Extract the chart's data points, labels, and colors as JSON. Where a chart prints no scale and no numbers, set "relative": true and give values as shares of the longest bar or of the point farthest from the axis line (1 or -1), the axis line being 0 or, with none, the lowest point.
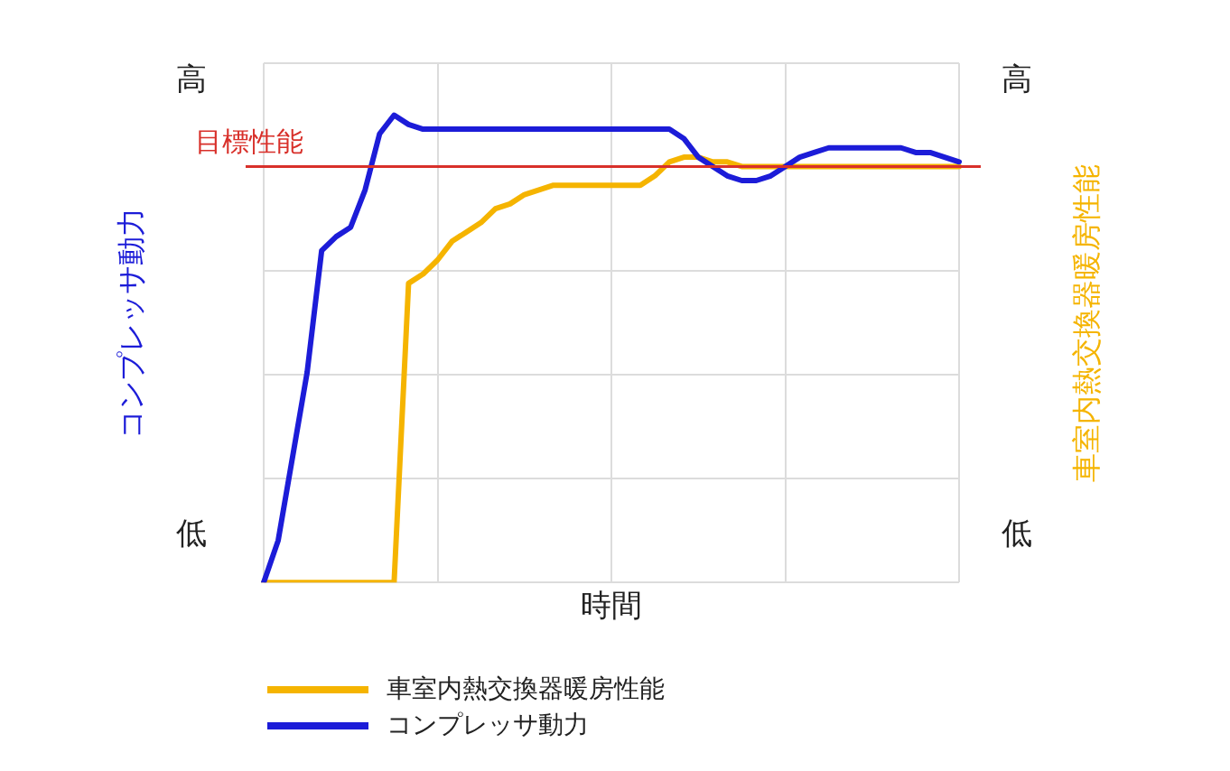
{
  "chart_data": {
    "type": "line",
    "relative": true,
    "xlabel": "時間",
    "ylabel": "コンプレッサ動力",
    "y2label": "車室内熱交換器暖房性能",
    "categories": [
      null,
      null,
      null,
      null,
      null,
      null,
      null,
      null,
      null,
      null,
      null,
      null,
      null,
      null,
      null,
      null,
      null,
      null,
      null,
      null,
      null,
      null,
      null,
      null,
      null,
      null,
      null,
      null,
      null,
      null,
      null,
      null,
      null,
      null,
      null,
      null,
      null,
      null,
      null,
      null,
      null,
      null,
      null,
      null,
      null,
      null,
      null,
      null,
      null
    ],
    "series": [
      {
        "name": "車室内熱交換器暖房性能",
        "color": "#f5b400",
        "values": [
          0,
          0,
          0,
          0,
          0,
          0,
          0,
          0,
          0,
          0,
          0.64,
          0.66,
          0.69,
          0.73,
          0.75,
          0.77,
          0.8,
          0.81,
          0.83,
          0.84,
          0.85,
          0.85,
          0.85,
          0.85,
          0.85,
          0.85,
          0.85,
          0.87,
          0.9,
          0.91,
          0.91,
          0.9,
          0.9,
          0.89,
          0.89,
          0.89,
          0.89,
          0.89,
          0.89,
          0.89,
          0.89,
          0.89,
          0.89,
          0.89,
          0.89,
          0.89,
          0.89,
          0.89,
          0.89
        ]
      },
      {
        "name": "コンプレッサ動力",
        "color": "#1c1cd8",
        "values": [
          0,
          0.09,
          0.27,
          0.45,
          0.71,
          0.74,
          0.76,
          0.84,
          0.96,
          1,
          0.98,
          0.97,
          0.97,
          0.97,
          0.97,
          0.97,
          0.97,
          0.97,
          0.97,
          0.97,
          0.97,
          0.97,
          0.97,
          0.97,
          0.97,
          0.97,
          0.97,
          0.97,
          0.97,
          0.95,
          0.91,
          0.89,
          0.87,
          0.86,
          0.86,
          0.87,
          0.89,
          0.91,
          0.92,
          0.93,
          0.93,
          0.93,
          0.93,
          0.93,
          0.93,
          0.92,
          0.92,
          0.91,
          0.9
        ]
      }
    ],
    "ref_lines": [
      {
        "axis": "y",
        "value": 0.89,
        "label": "目標性能",
        "color": "#d8302a"
      }
    ],
    "annotations": [
      "高",
      "低",
      "高",
      "低"
    ],
    "grid": true,
    "legend": "bottom left",
    "tick_labels": false,
    "line_style": "solid",
    "marker": "none"
  }
}
